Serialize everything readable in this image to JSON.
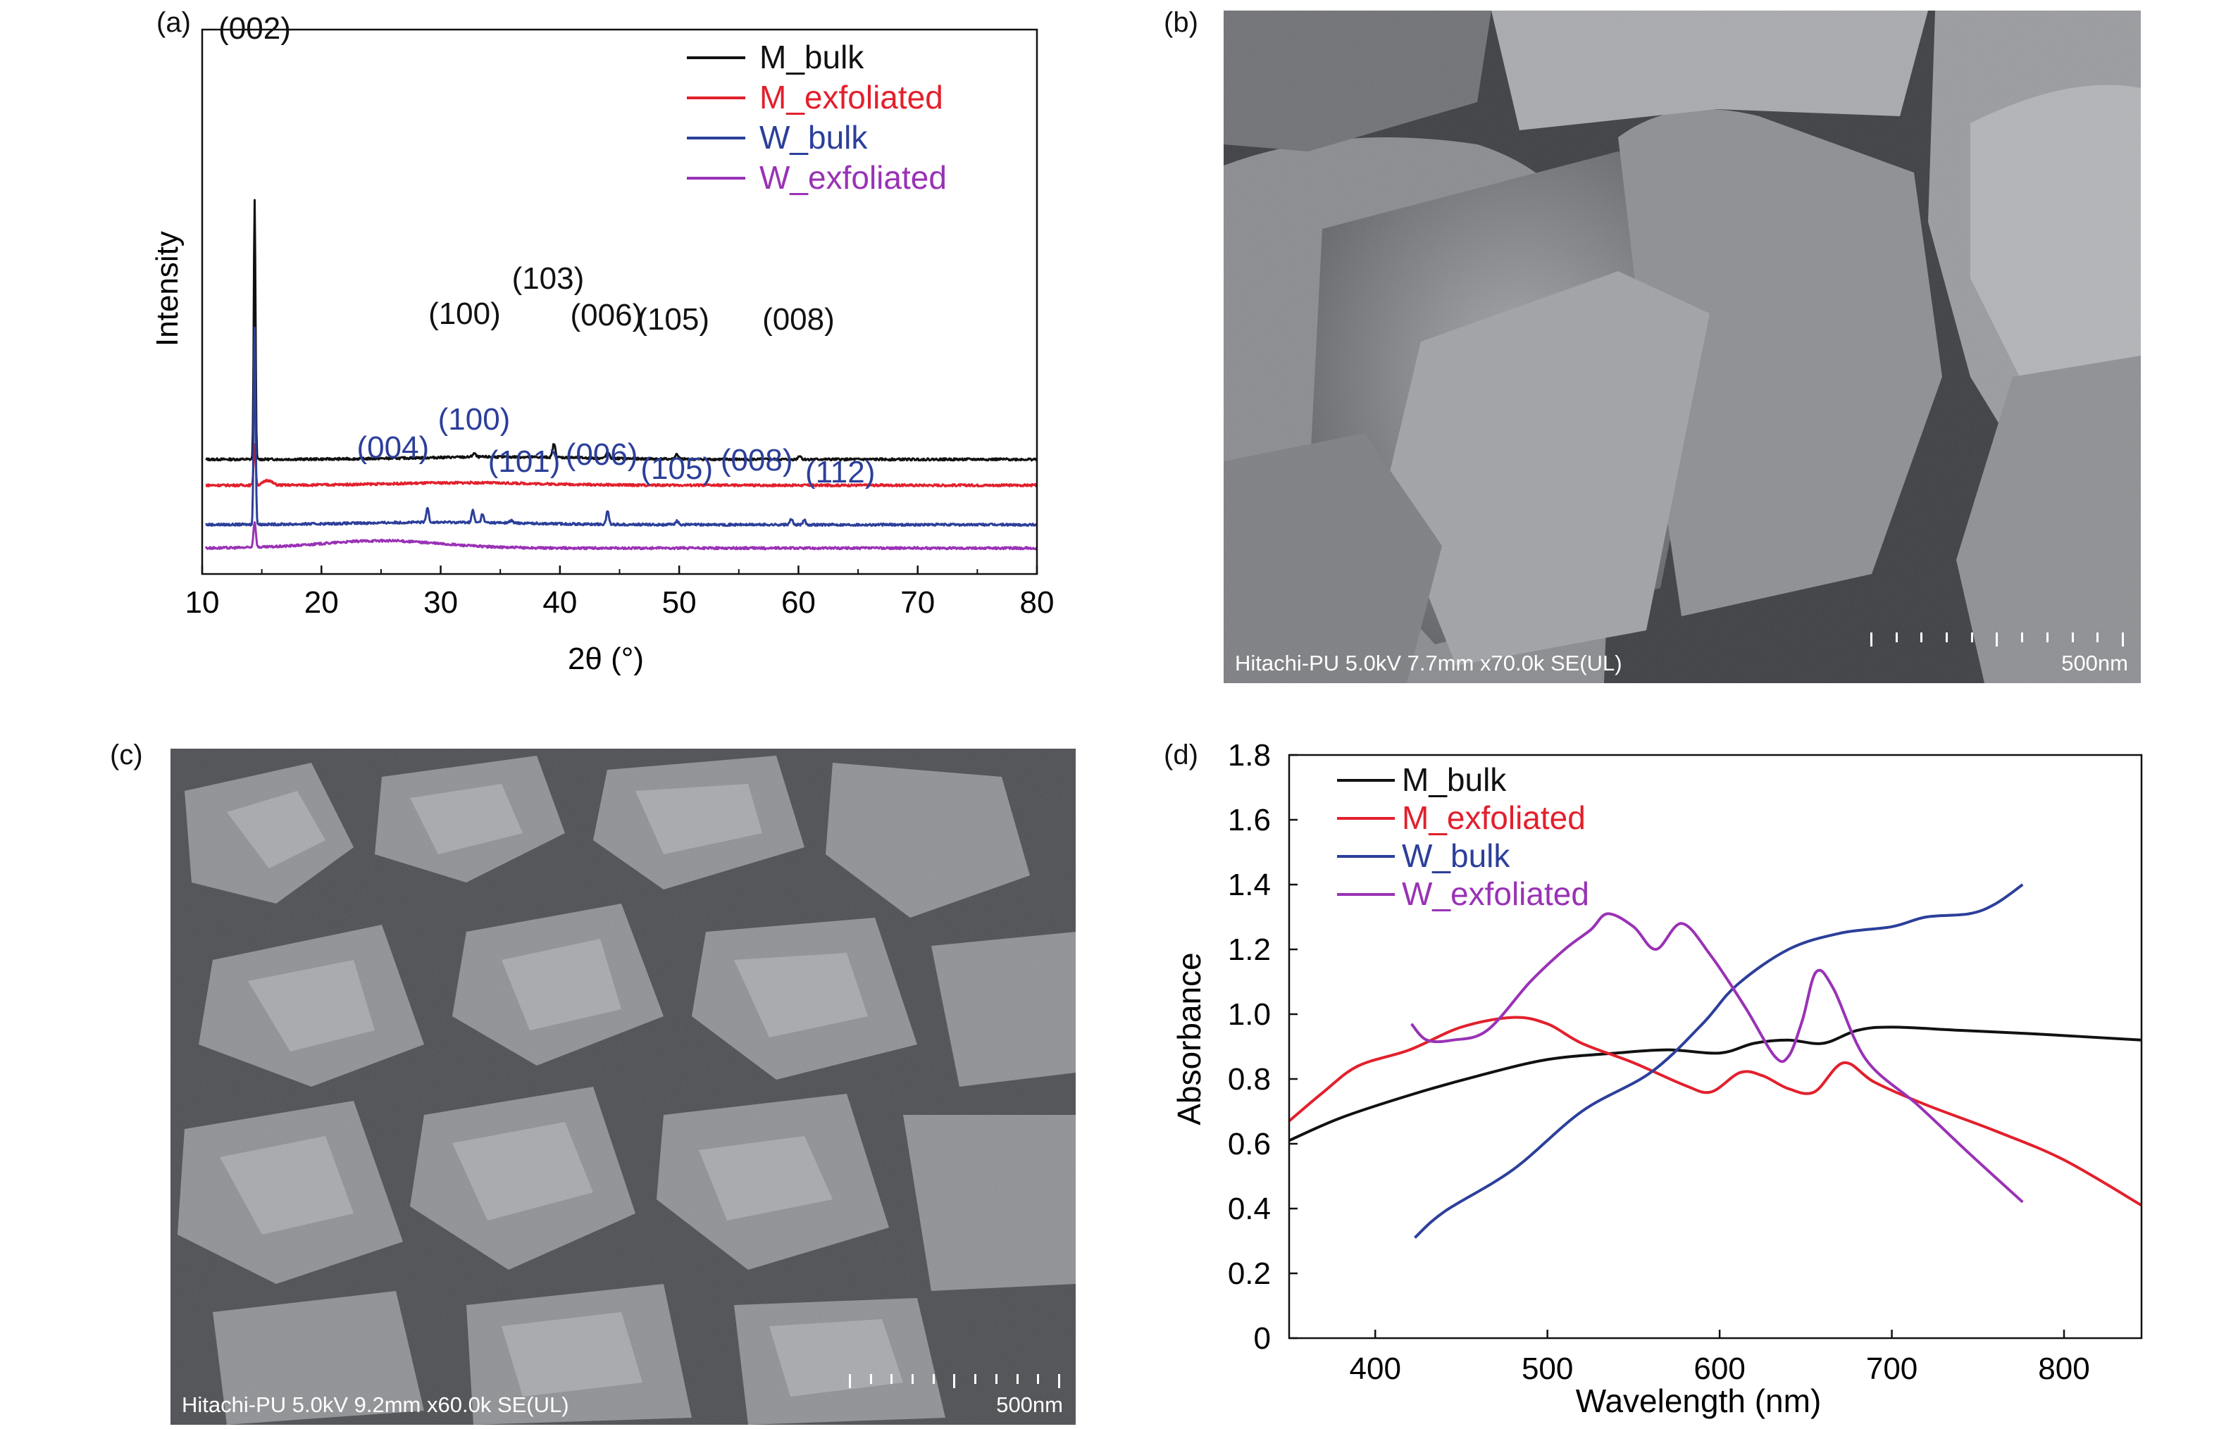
{
  "panels": {
    "a": "(a)",
    "b": "(b)",
    "c": "(c)",
    "d": "(d)"
  },
  "colors": {
    "M_bulk": "#111111",
    "M_exfoliated": "#e2202c",
    "W_bulk": "#2c3f9a",
    "W_exfoliated": "#9932b5"
  },
  "chart_data": [
    {
      "type": "line",
      "panel": "(a)",
      "xlabel": "2θ (°)",
      "ylabel": "Intensity",
      "xlim": [
        10,
        80
      ],
      "xticks": [
        10,
        20,
        30,
        40,
        50,
        60,
        70,
        80
      ],
      "y_ticks_shown": false,
      "legend": {
        "placement": "top-right",
        "entries": [
          "M_bulk",
          "M_exfoliated",
          "W_bulk",
          "W_exfoliated"
        ]
      },
      "series": [
        {
          "name": "M_bulk",
          "color": "#111111",
          "baseline": 0.68,
          "peaks": [
            {
              "x": 14.4,
              "h": 2.1,
              "w": 0.1
            },
            {
              "x": 32.8,
              "h": 0.03,
              "w": 0.18
            },
            {
              "x": 39.5,
              "h": 0.11,
              "w": 0.16
            },
            {
              "x": 44.0,
              "h": 0.05,
              "w": 0.18
            },
            {
              "x": 49.8,
              "h": 0.04,
              "w": 0.18
            },
            {
              "x": 60.1,
              "h": 0.03,
              "w": 0.18
            }
          ],
          "hump": {
            "x": 35.0,
            "h": 0.02,
            "w": 10.0
          }
        },
        {
          "name": "M_exfoliated",
          "color": "#e2202c",
          "baseline": 0.47,
          "peaks": [
            {
              "x": 14.4,
              "h": 0.33,
              "w": 0.12
            },
            {
              "x": 15.5,
              "h": 0.04,
              "w": 0.5
            }
          ],
          "hump": {
            "x": 32.0,
            "h": 0.02,
            "w": 9.0
          }
        },
        {
          "name": "W_bulk",
          "color": "#2c3f9a",
          "baseline": 0.15,
          "peaks": [
            {
              "x": 14.4,
              "h": 1.6,
              "w": 0.11
            },
            {
              "x": 28.9,
              "h": 0.12,
              "w": 0.15
            },
            {
              "x": 32.7,
              "h": 0.1,
              "w": 0.14
            },
            {
              "x": 33.5,
              "h": 0.07,
              "w": 0.14
            },
            {
              "x": 35.9,
              "h": 0.02,
              "w": 0.18
            },
            {
              "x": 44.0,
              "h": 0.11,
              "w": 0.15
            },
            {
              "x": 49.8,
              "h": 0.03,
              "w": 0.18
            },
            {
              "x": 59.4,
              "h": 0.05,
              "w": 0.14
            },
            {
              "x": 60.5,
              "h": 0.04,
              "w": 0.14
            }
          ],
          "hump": {
            "x": 30.0,
            "h": 0.02,
            "w": 10.0
          }
        },
        {
          "name": "W_exfoliated",
          "color": "#9932b5",
          "baseline": -0.04,
          "peaks": [
            {
              "x": 14.4,
              "h": 0.21,
              "w": 0.14
            }
          ],
          "hump": {
            "x": 25.0,
            "h": 0.06,
            "w": 7.0
          }
        }
      ],
      "annotations_black": [
        {
          "text": "(002)",
          "x": 14.4
        },
        {
          "text": "(100)",
          "x": 32.0
        },
        {
          "text": "(103)",
          "x": 39.0
        },
        {
          "text": "(006)",
          "x": 43.9
        },
        {
          "text": "(105)",
          "x": 49.5
        },
        {
          "text": "(008)",
          "x": 60.0
        }
      ],
      "annotations_blue": [
        {
          "text": "(004)",
          "x": 26.0
        },
        {
          "text": "(100)",
          "x": 32.8
        },
        {
          "text": "(101)",
          "x": 37.0
        },
        {
          "text": "(006)",
          "x": 43.5
        },
        {
          "text": "(105)",
          "x": 49.8
        },
        {
          "text": "(008)",
          "x": 56.5
        },
        {
          "text": "(112)",
          "x": 63.5
        }
      ]
    },
    {
      "type": "line",
      "panel": "(d)",
      "xlabel": "Wavelength (nm)",
      "ylabel": "Absorbance",
      "xlim": [
        350,
        845
      ],
      "ylim": [
        0,
        1.8
      ],
      "xticks": [
        400,
        500,
        600,
        700,
        800
      ],
      "yticks": [
        "0",
        "0.2",
        "0.4",
        "0.6",
        "0.8",
        "1.0",
        "1.2",
        "1.4",
        "1.6",
        "1.8"
      ],
      "legend": {
        "placement": "top-left",
        "entries": [
          "M_bulk",
          "M_exfoliated",
          "W_bulk",
          "W_exfoliated"
        ]
      },
      "series": [
        {
          "name": "M_bulk",
          "color": "#111111",
          "points": [
            [
              350,
              0.61
            ],
            [
              380,
              0.68
            ],
            [
              420,
              0.75
            ],
            [
              460,
              0.81
            ],
            [
              500,
              0.86
            ],
            [
              540,
              0.88
            ],
            [
              570,
              0.89
            ],
            [
              600,
              0.88
            ],
            [
              620,
              0.91
            ],
            [
              640,
              0.92
            ],
            [
              660,
              0.91
            ],
            [
              680,
              0.95
            ],
            [
              700,
              0.96
            ],
            [
              740,
              0.95
            ],
            [
              780,
              0.94
            ],
            [
              845,
              0.92
            ]
          ]
        },
        {
          "name": "M_exfoliated",
          "color": "#e2202c",
          "points": [
            [
              350,
              0.67
            ],
            [
              370,
              0.76
            ],
            [
              390,
              0.84
            ],
            [
              420,
              0.89
            ],
            [
              450,
              0.96
            ],
            [
              480,
              0.99
            ],
            [
              500,
              0.97
            ],
            [
              520,
              0.91
            ],
            [
              550,
              0.85
            ],
            [
              580,
              0.78
            ],
            [
              595,
              0.76
            ],
            [
              612,
              0.82
            ],
            [
              625,
              0.81
            ],
            [
              640,
              0.77
            ],
            [
              655,
              0.76
            ],
            [
              672,
              0.85
            ],
            [
              690,
              0.79
            ],
            [
              720,
              0.72
            ],
            [
              760,
              0.64
            ],
            [
              800,
              0.55
            ],
            [
              845,
              0.41
            ]
          ]
        },
        {
          "name": "W_bulk",
          "color": "#2c3f9a",
          "points": [
            [
              423,
              0.31
            ],
            [
              440,
              0.39
            ],
            [
              480,
              0.52
            ],
            [
              520,
              0.7
            ],
            [
              560,
              0.82
            ],
            [
              590,
              0.97
            ],
            [
              610,
              1.09
            ],
            [
              640,
              1.2
            ],
            [
              670,
              1.25
            ],
            [
              700,
              1.27
            ],
            [
              720,
              1.3
            ],
            [
              745,
              1.31
            ],
            [
              760,
              1.34
            ],
            [
              776,
              1.4
            ]
          ]
        },
        {
          "name": "W_exfoliated",
          "color": "#9932b5",
          "points": [
            [
              421,
              0.97
            ],
            [
              430,
              0.92
            ],
            [
              445,
              0.92
            ],
            [
              465,
              0.95
            ],
            [
              490,
              1.1
            ],
            [
              510,
              1.2
            ],
            [
              525,
              1.26
            ],
            [
              535,
              1.31
            ],
            [
              550,
              1.27
            ],
            [
              563,
              1.2
            ],
            [
              578,
              1.28
            ],
            [
              595,
              1.18
            ],
            [
              615,
              1.02
            ],
            [
              632,
              0.87
            ],
            [
              640,
              0.87
            ],
            [
              648,
              0.98
            ],
            [
              656,
              1.13
            ],
            [
              666,
              1.08
            ],
            [
              685,
              0.86
            ],
            [
              715,
              0.72
            ],
            [
              745,
              0.57
            ],
            [
              776,
              0.42
            ]
          ]
        }
      ]
    }
  ],
  "sem_b": {
    "caption": "Hitachi-PU 5.0kV 7.7mm x70.0k SE(UL)",
    "scale_label": "500nm"
  },
  "sem_c": {
    "caption": "Hitachi-PU 5.0kV 9.2mm x60.0k SE(UL)",
    "scale_label": "500nm"
  }
}
